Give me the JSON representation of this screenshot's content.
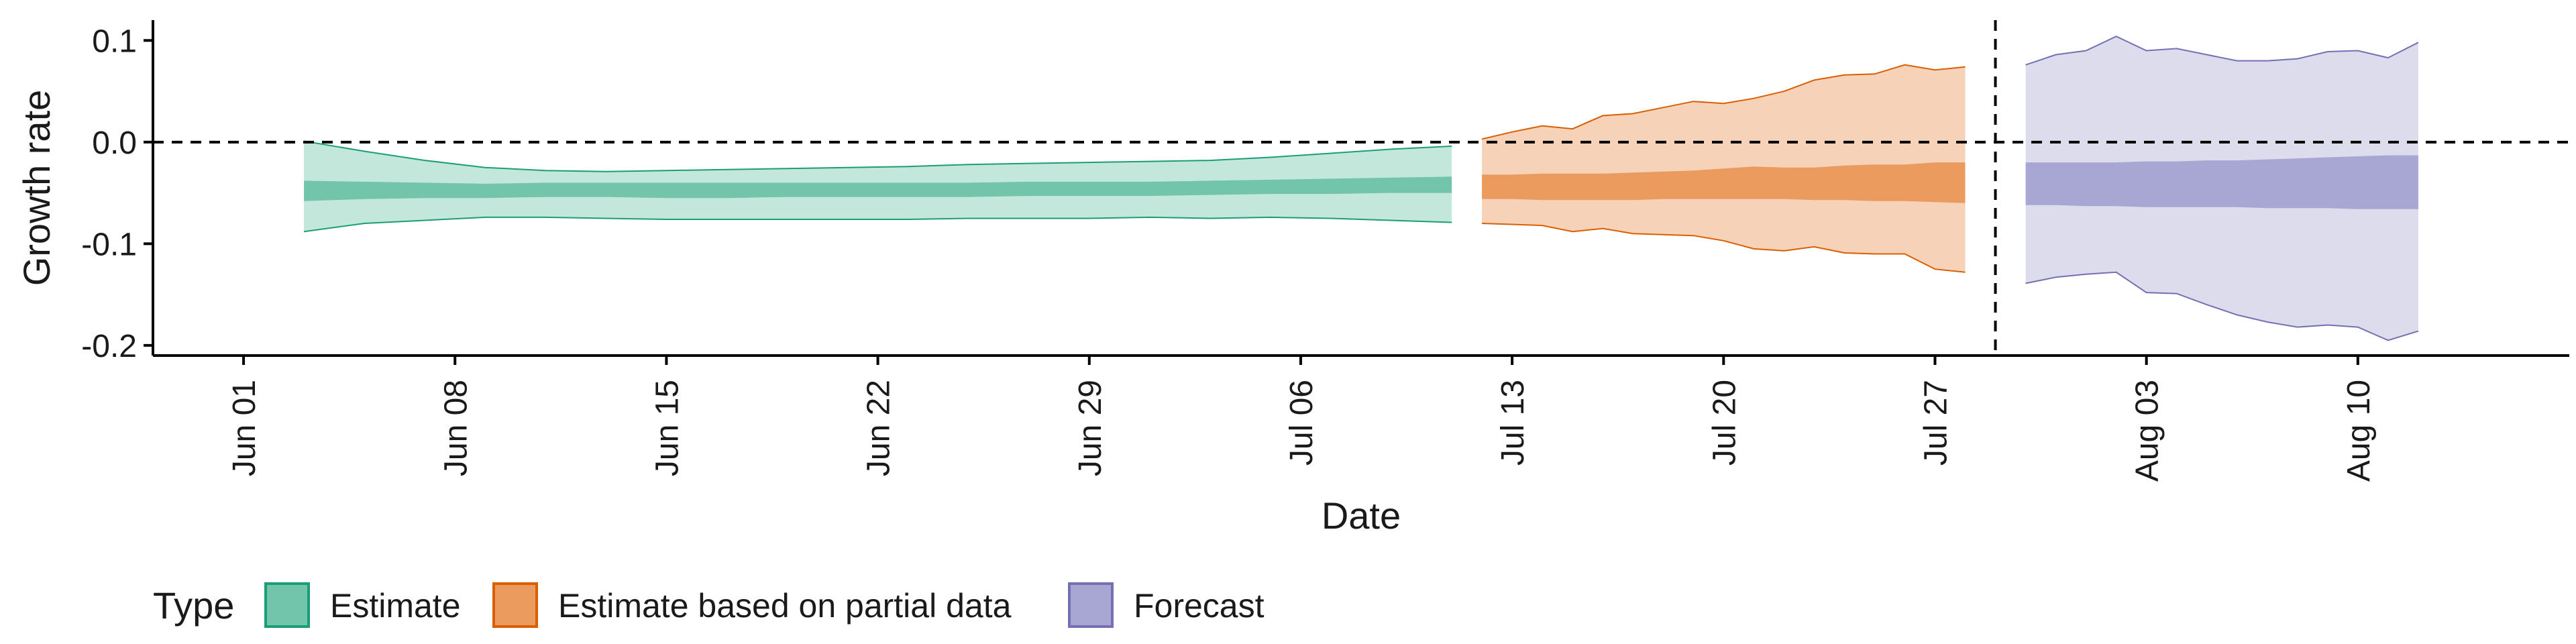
{
  "chart_data": {
    "type": "area",
    "xlabel": "Date",
    "ylabel": "Growth rate",
    "xlim": [
      "2020-05-29",
      "2020-08-17"
    ],
    "ylim": [
      -0.21,
      0.12
    ],
    "grid": false,
    "zero_line": 0.0,
    "vline_date": "2020-07-29",
    "x_ticks": [
      {
        "date": "2020-06-01",
        "label": "Jun 01"
      },
      {
        "date": "2020-06-08",
        "label": "Jun 08"
      },
      {
        "date": "2020-06-15",
        "label": "Jun 15"
      },
      {
        "date": "2020-06-22",
        "label": "Jun 22"
      },
      {
        "date": "2020-06-29",
        "label": "Jun 29"
      },
      {
        "date": "2020-07-06",
        "label": "Jul 06"
      },
      {
        "date": "2020-07-13",
        "label": "Jul 13"
      },
      {
        "date": "2020-07-20",
        "label": "Jul 20"
      },
      {
        "date": "2020-07-27",
        "label": "Jul 27"
      },
      {
        "date": "2020-08-03",
        "label": "Aug 03"
      },
      {
        "date": "2020-08-10",
        "label": "Aug 10"
      }
    ],
    "y_ticks": [
      {
        "value": 0.1,
        "label": "0.1"
      },
      {
        "value": 0.0,
        "label": "0.0"
      },
      {
        "value": -0.1,
        "label": "-0.1"
      },
      {
        "value": -0.2,
        "label": "-0.2"
      }
    ],
    "legend": {
      "title": "Type",
      "position": "bottom-left",
      "entries": [
        {
          "label": "Estimate",
          "color": "#72c4aa",
          "stroke": "#1b9e77"
        },
        {
          "label": "Estimate based on partial data",
          "color": "#eb9b5e",
          "stroke": "#d95f02"
        },
        {
          "label": "Forecast",
          "color": "#a8a6d3",
          "stroke": "#7570b3"
        }
      ]
    },
    "series": [
      {
        "type_label": "Estimate",
        "outer_color": "#c4e7dc",
        "inner_color": "#72c4aa",
        "stroke": "#1b9e77",
        "x": [
          "2020-06-03",
          "2020-06-05",
          "2020-06-07",
          "2020-06-09",
          "2020-06-11",
          "2020-06-13",
          "2020-06-15",
          "2020-06-17",
          "2020-06-19",
          "2020-06-21",
          "2020-06-23",
          "2020-06-25",
          "2020-06-27",
          "2020-06-29",
          "2020-07-01",
          "2020-07-03",
          "2020-07-05",
          "2020-07-07",
          "2020-07-09",
          "2020-07-11"
        ],
        "outer_lower": [
          -0.088,
          -0.08,
          -0.077,
          -0.074,
          -0.074,
          -0.075,
          -0.076,
          -0.076,
          -0.076,
          -0.076,
          -0.076,
          -0.075,
          -0.075,
          -0.075,
          -0.074,
          -0.075,
          -0.074,
          -0.075,
          -0.077,
          -0.079
        ],
        "outer_upper": [
          0.001,
          -0.009,
          -0.018,
          -0.025,
          -0.028,
          -0.029,
          -0.028,
          -0.027,
          -0.026,
          -0.025,
          -0.024,
          -0.022,
          -0.021,
          -0.02,
          -0.019,
          -0.018,
          -0.015,
          -0.011,
          -0.007,
          -0.004
        ],
        "inner_lower": [
          -0.058,
          -0.056,
          -0.055,
          -0.055,
          -0.054,
          -0.054,
          -0.055,
          -0.055,
          -0.054,
          -0.054,
          -0.054,
          -0.054,
          -0.053,
          -0.053,
          -0.053,
          -0.052,
          -0.051,
          -0.051,
          -0.05,
          -0.05
        ],
        "inner_upper": [
          -0.038,
          -0.039,
          -0.04,
          -0.041,
          -0.04,
          -0.04,
          -0.04,
          -0.04,
          -0.04,
          -0.04,
          -0.04,
          -0.04,
          -0.039,
          -0.039,
          -0.039,
          -0.038,
          -0.037,
          -0.036,
          -0.035,
          -0.034
        ]
      },
      {
        "type_label": "Estimate based on partial data",
        "outer_color": "#f6d3b8",
        "inner_color": "#eb9b5e",
        "stroke": "#d95f02",
        "x": [
          "2020-07-12",
          "2020-07-13",
          "2020-07-14",
          "2020-07-15",
          "2020-07-16",
          "2020-07-17",
          "2020-07-18",
          "2020-07-19",
          "2020-07-20",
          "2020-07-21",
          "2020-07-22",
          "2020-07-23",
          "2020-07-24",
          "2020-07-25",
          "2020-07-26",
          "2020-07-27",
          "2020-07-28"
        ],
        "outer_lower": [
          -0.08,
          -0.081,
          -0.082,
          -0.088,
          -0.085,
          -0.09,
          -0.091,
          -0.092,
          -0.097,
          -0.105,
          -0.107,
          -0.103,
          -0.109,
          -0.11,
          -0.11,
          -0.125,
          -0.128
        ],
        "outer_upper": [
          0.003,
          0.01,
          0.016,
          0.013,
          0.026,
          0.028,
          0.034,
          0.04,
          0.038,
          0.043,
          0.05,
          0.061,
          0.066,
          0.067,
          0.076,
          0.071,
          0.074
        ],
        "inner_lower": [
          -0.056,
          -0.056,
          -0.057,
          -0.057,
          -0.057,
          -0.057,
          -0.056,
          -0.056,
          -0.056,
          -0.056,
          -0.056,
          -0.057,
          -0.057,
          -0.058,
          -0.058,
          -0.059,
          -0.06
        ],
        "inner_upper": [
          -0.032,
          -0.032,
          -0.031,
          -0.031,
          -0.031,
          -0.03,
          -0.029,
          -0.028,
          -0.026,
          -0.024,
          -0.025,
          -0.025,
          -0.023,
          -0.022,
          -0.022,
          -0.02,
          -0.02
        ]
      },
      {
        "type_label": "Forecast",
        "outer_color": "#dcdcec",
        "inner_color": "#a8a6d3",
        "stroke": "#7570b3",
        "x": [
          "2020-07-30",
          "2020-07-31",
          "2020-08-01",
          "2020-08-02",
          "2020-08-03",
          "2020-08-04",
          "2020-08-05",
          "2020-08-06",
          "2020-08-07",
          "2020-08-08",
          "2020-08-09",
          "2020-08-10",
          "2020-08-11",
          "2020-08-12"
        ],
        "outer_lower": [
          -0.139,
          -0.133,
          -0.13,
          -0.128,
          -0.148,
          -0.149,
          -0.16,
          -0.17,
          -0.177,
          -0.182,
          -0.18,
          -0.182,
          -0.195,
          -0.186
        ],
        "outer_upper": [
          0.076,
          0.086,
          0.09,
          0.104,
          0.09,
          0.092,
          0.086,
          0.08,
          0.08,
          0.082,
          0.089,
          0.09,
          0.083,
          0.098
        ],
        "inner_lower": [
          -0.062,
          -0.062,
          -0.063,
          -0.063,
          -0.064,
          -0.064,
          -0.064,
          -0.064,
          -0.065,
          -0.065,
          -0.065,
          -0.066,
          -0.066,
          -0.066
        ],
        "inner_upper": [
          -0.02,
          -0.02,
          -0.02,
          -0.02,
          -0.019,
          -0.019,
          -0.018,
          -0.018,
          -0.017,
          -0.016,
          -0.015,
          -0.014,
          -0.013,
          -0.013
        ]
      }
    ]
  }
}
